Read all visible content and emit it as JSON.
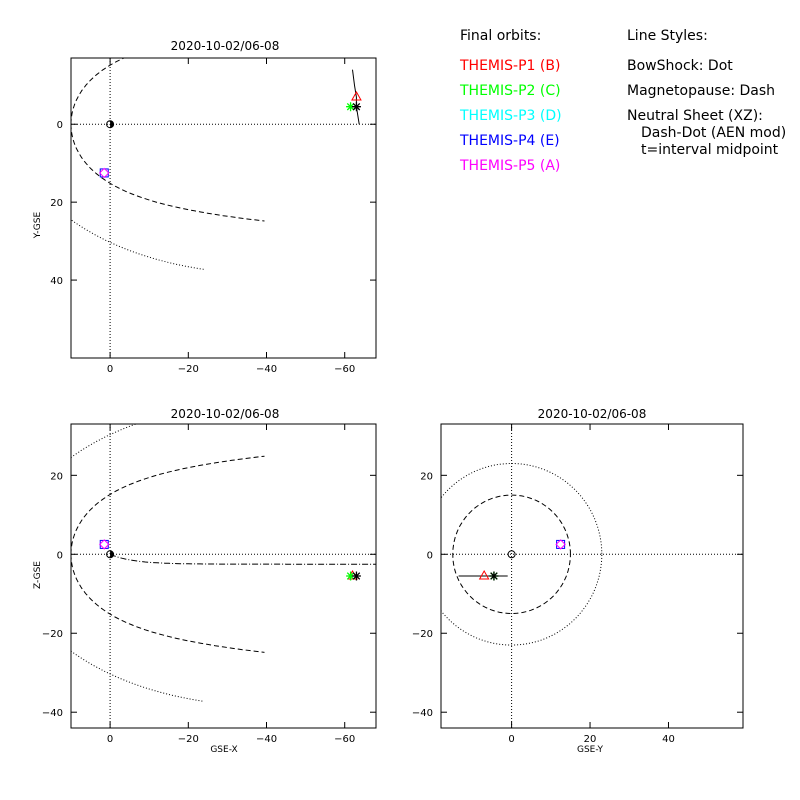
{
  "legend": {
    "orbits_title": "Final orbits:",
    "probes": [
      {
        "label": "THEMIS-P1 (B)",
        "color": "#ff0000"
      },
      {
        "label": "THEMIS-P2 (C)",
        "color": "#00ff00"
      },
      {
        "label": "THEMIS-P3 (D)",
        "color": "#00ffff"
      },
      {
        "label": "THEMIS-P4 (E)",
        "color": "#0000ff"
      },
      {
        "label": "THEMIS-P5 (A)",
        "color": "#ff00ff"
      }
    ],
    "styles_title": "Line Styles:",
    "style_lines": [
      "BowShock: Dot",
      "Magnetopause: Dash",
      "Neutral Sheet (XZ):",
      "Dash-Dot (AEN mod)",
      "t=interval midpoint"
    ]
  },
  "chart_data": [
    {
      "type": "scatter",
      "title": "2020-10-02/06-08",
      "xlabel": "",
      "ylabel": "Y-GSE",
      "xlim": [
        10,
        -68
      ],
      "ylim": [
        -60,
        17
      ],
      "xticks": [
        0,
        -20,
        -40,
        -60
      ],
      "xtick_labels": [
        "0",
        "−20",
        "−40",
        "−60"
      ],
      "yticks": [
        0,
        -20,
        -40
      ],
      "ytick_labels": [
        "0",
        "20",
        "40"
      ],
      "earth": [
        0,
        0
      ],
      "points": [
        {
          "probe": "P1",
          "marker": "triangle",
          "x": -63,
          "y": 7
        },
        {
          "probe": "P2",
          "marker": "asterisk",
          "x": -61.5,
          "y": 4.5
        },
        {
          "probe": "P3",
          "marker": "asterisk",
          "x": -63,
          "y": 4.5
        },
        {
          "probe": "P4",
          "marker": "square",
          "x": 1.5,
          "y": -12.5
        },
        {
          "probe": "P5",
          "marker": "diamond",
          "x": 1.5,
          "y": -12.5
        }
      ],
      "orbit_track": [
        [
          -62,
          14
        ],
        [
          -62.5,
          10
        ],
        [
          -63,
          7
        ],
        [
          -63,
          4.5
        ],
        [
          -63.7,
          0
        ]
      ]
    },
    {
      "type": "scatter",
      "title": "2020-10-02/06-08",
      "xlabel": "GSE-X",
      "ylabel": "Z-GSE",
      "xlim": [
        10,
        -68
      ],
      "ylim": [
        -44,
        33
      ],
      "xticks": [
        0,
        -20,
        -40,
        -60
      ],
      "xtick_labels": [
        "0",
        "−20",
        "−40",
        "−60"
      ],
      "yticks": [
        20,
        0,
        -20,
        -40
      ],
      "ytick_labels": [
        "20",
        "0",
        "−20",
        "−40"
      ],
      "earth": [
        0,
        0
      ],
      "points": [
        {
          "probe": "P1",
          "marker": "triangle",
          "x": -62,
          "y": -5.5
        },
        {
          "probe": "P2",
          "marker": "asterisk",
          "x": -61.5,
          "y": -5.5
        },
        {
          "probe": "P3",
          "marker": "asterisk",
          "x": -63,
          "y": -5.5
        },
        {
          "probe": "P4",
          "marker": "square",
          "x": 1.5,
          "y": 2.5
        },
        {
          "probe": "P5",
          "marker": "diamond",
          "x": 1.5,
          "y": 2.5
        }
      ]
    },
    {
      "type": "scatter",
      "title": "2020-10-02/06-08",
      "xlabel": "GSE-Y",
      "ylabel": "",
      "xlim": [
        -18,
        59
      ],
      "ylim": [
        -44,
        33
      ],
      "xticks": [
        0,
        20,
        40
      ],
      "xtick_labels": [
        "0",
        "20",
        "40"
      ],
      "yticks": [
        20,
        0,
        -20,
        -40
      ],
      "ytick_labels": [
        "20",
        "0",
        "−20",
        "−40"
      ],
      "earth": [
        0,
        0
      ],
      "points": [
        {
          "probe": "P1",
          "marker": "triangle",
          "x": -7,
          "y": -5.5
        },
        {
          "probe": "P2",
          "marker": "asterisk",
          "x": -4.5,
          "y": -5.5
        },
        {
          "probe": "P3",
          "marker": "asterisk",
          "x": -4.5,
          "y": -5.5
        },
        {
          "probe": "P4",
          "marker": "square",
          "x": 12.5,
          "y": 2.5
        },
        {
          "probe": "P5",
          "marker": "diamond",
          "x": 12.5,
          "y": 2.5
        }
      ],
      "orbit_track": [
        [
          -13.5,
          -5.5
        ],
        [
          -7,
          -5.5
        ],
        [
          -4.5,
          -5.5
        ],
        [
          -1,
          -5.5
        ]
      ]
    }
  ]
}
